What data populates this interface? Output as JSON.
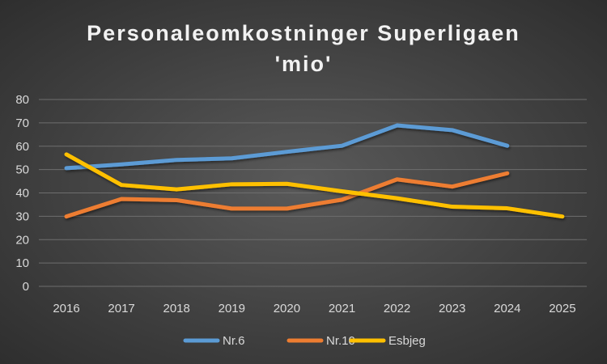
{
  "chart_data": {
    "type": "line",
    "title": [
      "Personaleomkostninger Superligaen",
      "'mio'"
    ],
    "xlabel": "",
    "ylabel": "",
    "categories": [
      "2016",
      "2017",
      "2018",
      "2019",
      "2020",
      "2021",
      "2022",
      "2023",
      "2024",
      "2025"
    ],
    "ylim": [
      0,
      80
    ],
    "yticks": [
      0,
      10,
      20,
      30,
      40,
      50,
      60,
      70,
      80
    ],
    "grid": true,
    "legend_position": "bottom",
    "series": [
      {
        "name": "Nr.6",
        "color": "#5b9bd5",
        "values": [
          50.6,
          52.2,
          54.1,
          54.8,
          57.6,
          60.2,
          68.9,
          66.9,
          60.2,
          null
        ]
      },
      {
        "name": "Nr.10",
        "color": "#ed7d31",
        "values": [
          29.9,
          37.4,
          36.9,
          33.3,
          33.3,
          37.1,
          45.8,
          42.7,
          48.4,
          null
        ]
      },
      {
        "name": "Esbjeg",
        "color": "#ffc000",
        "values": [
          56.5,
          43.4,
          41.5,
          43.7,
          43.9,
          40.7,
          37.7,
          34.1,
          33.4,
          29.9
        ]
      }
    ]
  }
}
